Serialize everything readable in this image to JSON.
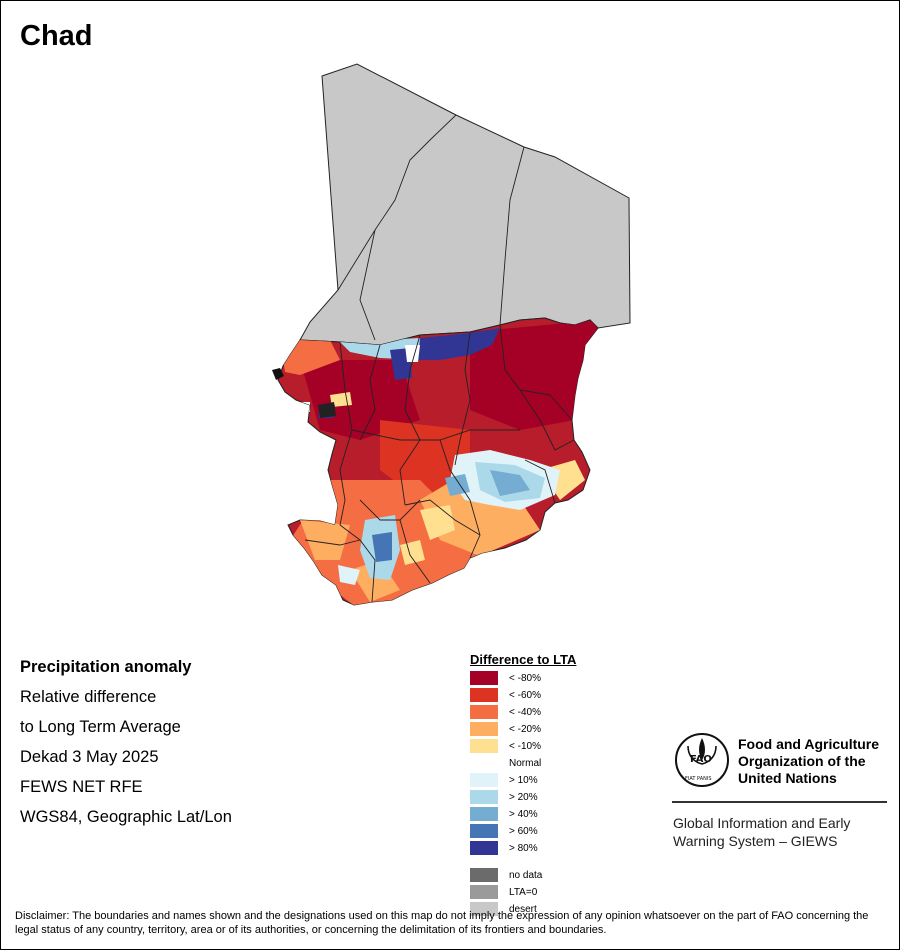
{
  "map": {
    "title": "Chad",
    "country_fill": "#c8c8c8",
    "border_color": "#222222"
  },
  "info": {
    "line1": "Precipitation anomaly",
    "line2": "Relative difference",
    "line3": "to Long Term Average",
    "line4": "Dekad 3 May 2025",
    "line5": "FEWS NET RFE",
    "line6": "WGS84, Geographic Lat/Lon"
  },
  "legend": {
    "title": "Difference to LTA",
    "items": [
      {
        "label": "< -80%",
        "color": "#a50026"
      },
      {
        "label": "< -60%",
        "color": "#dc3323"
      },
      {
        "label": "< -40%",
        "color": "#f46d43"
      },
      {
        "label": "< -20%",
        "color": "#fdae61"
      },
      {
        "label": "< -10%",
        "color": "#fee090"
      },
      {
        "label": "Normal",
        "color": "#ffffff"
      },
      {
        "label": "> 10%",
        "color": "#e0f3f8"
      },
      {
        "label": "> 20%",
        "color": "#abd9e9"
      },
      {
        "label": "> 40%",
        "color": "#74add1"
      },
      {
        "label": "> 60%",
        "color": "#4575b4"
      },
      {
        "label": "> 80%",
        "color": "#313695"
      }
    ],
    "extra": [
      {
        "label": "no data",
        "color": "#6b6b6b"
      },
      {
        "label": "LTA=0",
        "color": "#9a9a9a"
      },
      {
        "label": "desert",
        "color": "#c8c8c8"
      }
    ]
  },
  "org": {
    "line1": "Food and Agriculture",
    "line2": "Organization of the",
    "line3": "United Nations",
    "giews1": "Global Information and Early",
    "giews2": "Warning System – GIEWS",
    "logo_letters": "FAO",
    "logo_motto": "FIAT PANIS"
  },
  "disclaimer": "Disclaimer: The boundaries and names shown and the designations used on this map do not imply the expression of any opinion whatsoever on the part of FAO concerning the legal status of any country, territory, area or of its authorities, or concerning the delimitation of its frontiers and boundaries."
}
